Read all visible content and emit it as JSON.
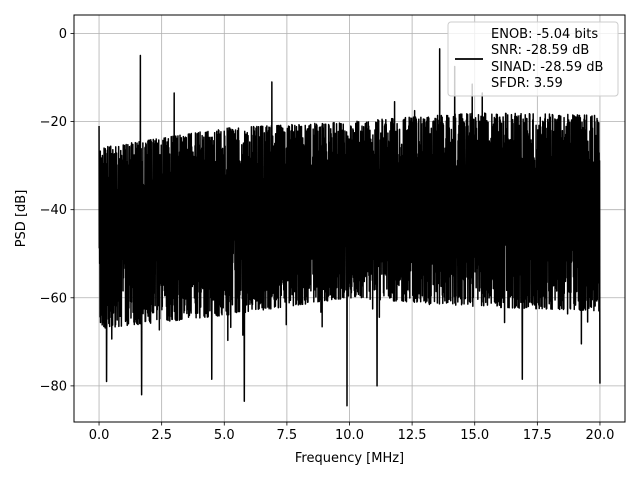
{
  "chart_data": {
    "type": "line",
    "title": "",
    "xlabel": "Frequency [MHz]",
    "ylabel": "PSD [dB]",
    "xlim": [
      -1.0,
      21.0
    ],
    "ylim": [
      -88.2,
      4.2
    ],
    "xticks": [
      0.0,
      2.5,
      5.0,
      7.5,
      10.0,
      12.5,
      15.0,
      17.5,
      20.0
    ],
    "xtick_labels": [
      "0.0",
      "2.5",
      "5.0",
      "7.5",
      "10.0",
      "12.5",
      "15.0",
      "17.5",
      "20.0"
    ],
    "yticks": [
      0,
      -20,
      -40,
      -60,
      -80
    ],
    "ytick_labels": [
      "0",
      "−20",
      "−40",
      "−60",
      "−80"
    ],
    "grid": true,
    "legend_location": "upper right",
    "legend_text": [
      "ENOB: -5.04 bits",
      "SNR: -28.59 dB",
      "SINAD: -28.59 dB",
      "SFDR: 3.59"
    ],
    "series": [
      {
        "color": "#000000",
        "description_points": {
          "fundamental": {
            "x": 0.0,
            "y": 0.0
          },
          "spurs": [
            {
              "x": 0.0,
              "y": -21.0
            },
            {
              "x": 1.65,
              "y": -5.0
            },
            {
              "x": 3.0,
              "y": -13.5
            },
            {
              "x": 6.9,
              "y": -11.0
            },
            {
              "x": 11.8,
              "y": -15.5
            },
            {
              "x": 12.6,
              "y": -17.5
            },
            {
              "x": 13.6,
              "y": -3.5
            },
            {
              "x": 14.2,
              "y": -7.5
            },
            {
              "x": 14.9,
              "y": -11.5
            },
            {
              "x": 15.3,
              "y": -13.5
            }
          ],
          "minima": [
            {
              "x": 0.3,
              "y": -79.0
            },
            {
              "x": 1.7,
              "y": -82.0
            },
            {
              "x": 4.5,
              "y": -78.5
            },
            {
              "x": 5.8,
              "y": -83.5
            },
            {
              "x": 9.9,
              "y": -84.5
            },
            {
              "x": 11.1,
              "y": -80.0
            },
            {
              "x": 16.9,
              "y": -78.5
            },
            {
              "x": 20.0,
              "y": -79.5
            }
          ]
        },
        "x_range": [
          0.0,
          20.0
        ],
        "upper_envelope": {
          "x": [
            0,
            5,
            10,
            15,
            20
          ],
          "y": [
            -26,
            -21.5,
            -20,
            -18,
            -18.5
          ]
        },
        "lower_envelope": {
          "x": [
            0,
            5,
            10,
            15,
            20
          ],
          "y": [
            -67,
            -64,
            -60,
            -62,
            -63
          ]
        },
        "samples": 2400
      }
    ]
  }
}
